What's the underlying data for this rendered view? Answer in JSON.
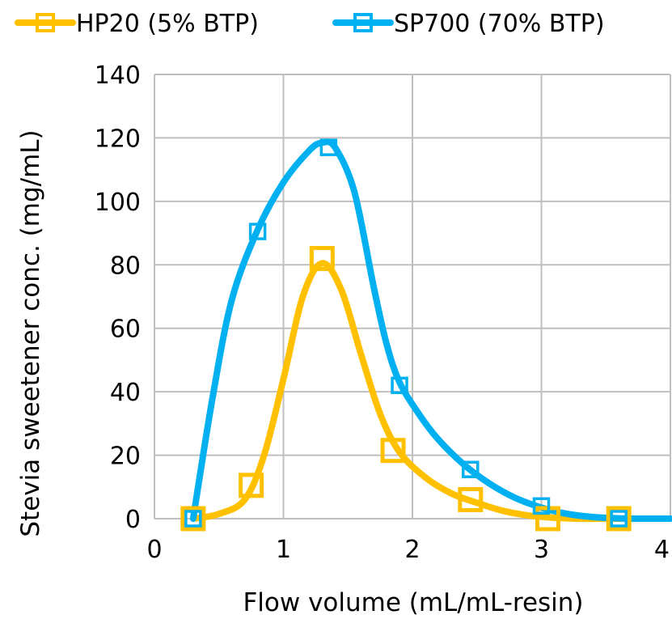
{
  "chart_data": {
    "type": "line",
    "xlabel": "Flow volume (mL/mL-resin)",
    "ylabel": "Stevia sweetener conc.  (mg/mL)",
    "xlim": [
      0,
      4
    ],
    "ylim": [
      0,
      140
    ],
    "x_ticks": [
      "0",
      "1",
      "2",
      "3",
      "4"
    ],
    "y_ticks": [
      "0",
      "20",
      "40",
      "60",
      "80",
      "100",
      "120",
      "140"
    ],
    "x_tick_values": [
      0,
      1,
      2,
      3,
      4
    ],
    "y_tick_values": [
      0,
      20,
      40,
      60,
      80,
      100,
      120,
      140
    ],
    "grid": true,
    "legend_position": "top",
    "series": [
      {
        "name": "HP20 (5% BTP)",
        "color": "#FFC000",
        "marker": "square",
        "points": [
          [
            0.3,
            0
          ],
          [
            0.75,
            10.5
          ],
          [
            1.3,
            82
          ],
          [
            1.85,
            21.5
          ],
          [
            2.45,
            6
          ],
          [
            3.05,
            0
          ],
          [
            3.6,
            0
          ]
        ],
        "curve": [
          [
            0.3,
            0
          ],
          [
            0.5,
            1.5
          ],
          [
            0.7,
            6
          ],
          [
            0.85,
            20
          ],
          [
            1.0,
            44
          ],
          [
            1.15,
            70
          ],
          [
            1.3,
            80.5
          ],
          [
            1.45,
            72
          ],
          [
            1.6,
            52
          ],
          [
            1.75,
            33
          ],
          [
            1.9,
            21
          ],
          [
            2.1,
            13
          ],
          [
            2.3,
            8
          ],
          [
            2.5,
            5
          ],
          [
            2.7,
            2.5
          ],
          [
            2.9,
            1
          ],
          [
            3.1,
            0.3
          ],
          [
            3.3,
            0
          ],
          [
            3.6,
            0
          ]
        ]
      },
      {
        "name": "SP700 (70% BTP)",
        "color": "#00B0F0",
        "marker": "square",
        "points": [
          [
            0.3,
            0
          ],
          [
            0.8,
            90.5
          ],
          [
            1.35,
            117
          ],
          [
            1.9,
            42
          ],
          [
            2.45,
            15.5
          ],
          [
            3.0,
            4
          ],
          [
            3.6,
            0
          ]
        ],
        "curve": [
          [
            0.3,
            0
          ],
          [
            0.45,
            38
          ],
          [
            0.6,
            69
          ],
          [
            0.8,
            91
          ],
          [
            1.0,
            106
          ],
          [
            1.2,
            116
          ],
          [
            1.3,
            118.5
          ],
          [
            1.4,
            117
          ],
          [
            1.55,
            103
          ],
          [
            1.7,
            73
          ],
          [
            1.8,
            55
          ],
          [
            1.9,
            43
          ],
          [
            2.05,
            33
          ],
          [
            2.2,
            25
          ],
          [
            2.4,
            17
          ],
          [
            2.6,
            11
          ],
          [
            2.8,
            6.5
          ],
          [
            3.0,
            3.5
          ],
          [
            3.2,
            1.5
          ],
          [
            3.4,
            0.5
          ],
          [
            3.6,
            0.1
          ],
          [
            3.8,
            0
          ],
          [
            4.0,
            0
          ]
        ]
      }
    ]
  }
}
